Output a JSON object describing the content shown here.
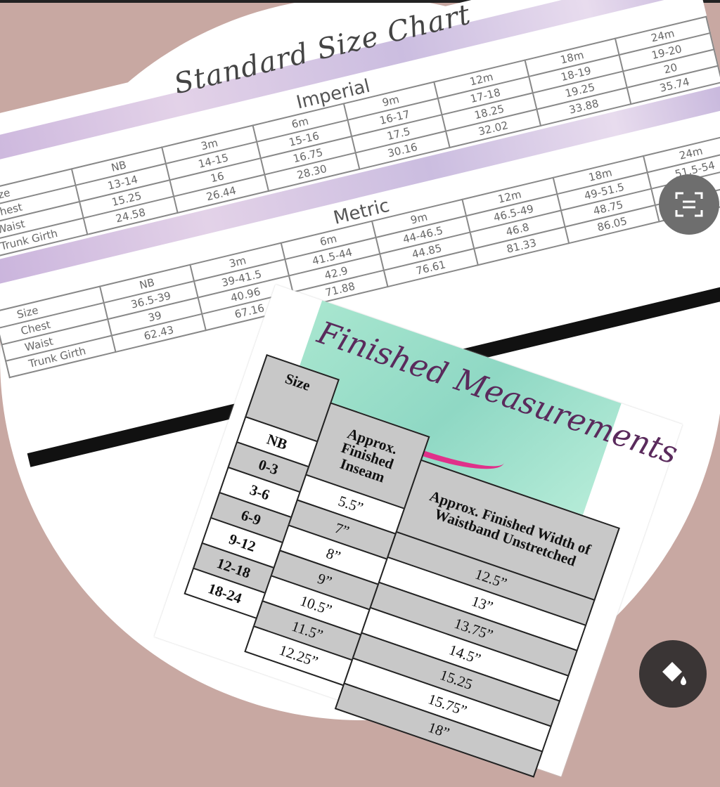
{
  "size_chart": {
    "title": "Standard Size Chart",
    "imperial": {
      "heading": "Imperial",
      "rows": [
        {
          "label": "Size",
          "values": [
            "NB",
            "3m",
            "6m",
            "9m",
            "12m",
            "18m",
            "24m"
          ]
        },
        {
          "label": "Chest",
          "values": [
            "13-14",
            "14-15",
            "15-16",
            "16-17",
            "17-18",
            "18-19",
            "19-20"
          ]
        },
        {
          "label": "Waist",
          "values": [
            "15.25",
            "16",
            "16.75",
            "17.5",
            "18.25",
            "19.25",
            "20"
          ]
        },
        {
          "label": "Trunk Girth",
          "values": [
            "24.58",
            "26.44",
            "28.30",
            "30.16",
            "32.02",
            "33.88",
            "35.74"
          ]
        }
      ]
    },
    "metric": {
      "heading": "Metric",
      "rows": [
        {
          "label": "Size",
          "values": [
            "NB",
            "3m",
            "6m",
            "9m",
            "12m",
            "18m",
            "24m"
          ]
        },
        {
          "label": "Chest",
          "values": [
            "36.5-39",
            "39-41.5",
            "41.5-44",
            "44-46.5",
            "46.5-49",
            "49-51.5",
            "51.5-54"
          ]
        },
        {
          "label": "Waist",
          "values": [
            "39",
            "40.96",
            "42.9",
            "44.85",
            "46.8",
            "48.75",
            ""
          ]
        },
        {
          "label": "Trunk Girth",
          "values": [
            "62.43",
            "67.16",
            "71.88",
            "76.61",
            "81.33",
            "86.05",
            ""
          ]
        }
      ]
    }
  },
  "finished": {
    "title": "Finished Measurements",
    "headers": [
      "Size",
      "Approx. Finished Inseam",
      "Approx. Finished Width of Waistband Unstretched"
    ],
    "sizes": [
      "NB",
      "0-3",
      "3-6",
      "6-9",
      "9-12",
      "12-18",
      "18-24"
    ],
    "inseam": [
      "5.5”",
      "7”",
      "8”",
      "9”",
      "10.5”",
      "11.5”",
      "12.25”"
    ],
    "waistband": [
      "12.5”",
      "13”",
      "13.75”",
      "14.5”",
      "15.25",
      "15.75”",
      "18”"
    ]
  },
  "overlay_buttons": {
    "scan_icon": "scan-text-icon",
    "paint_icon": "paint-bucket-icon",
    "colors": {
      "scan": "#6e6e6e",
      "paint": "#3a3535",
      "background": "#c8a8a2"
    }
  }
}
